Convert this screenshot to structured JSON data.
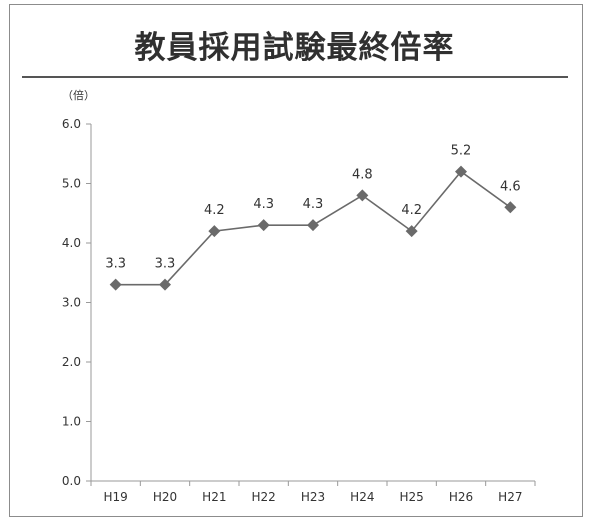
{
  "chart_data": {
    "type": "line",
    "title": "教員採用試験最終倍率",
    "unit_label": "（倍）",
    "categories": [
      "H19",
      "H20",
      "H21",
      "H22",
      "H23",
      "H24",
      "H25",
      "H26",
      "H27"
    ],
    "series": [
      {
        "values": [
          3.3,
          3.3,
          4.2,
          4.3,
          4.3,
          4.8,
          4.2,
          5.2,
          4.6
        ],
        "data_labels": [
          "3.3",
          "3.3",
          "4.2",
          "4.3",
          "4.3",
          "4.8",
          "4.2",
          "5.2",
          "4.6"
        ]
      }
    ],
    "ylim": [
      0,
      6
    ],
    "yticks": [
      "0.0",
      "1.0",
      "2.0",
      "3.0",
      "4.0",
      "5.0",
      "6.0"
    ],
    "grid": false,
    "legend": "none",
    "colors": {
      "line": "#6a6a6a",
      "marker": "#6a6a6a",
      "axis": "#9a9a9a"
    }
  }
}
